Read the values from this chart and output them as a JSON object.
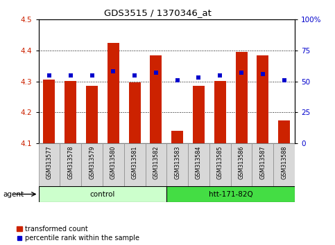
{
  "title": "GDS3515 / 1370346_at",
  "samples": [
    "GSM313577",
    "GSM313578",
    "GSM313579",
    "GSM313580",
    "GSM313581",
    "GSM313582",
    "GSM313583",
    "GSM313584",
    "GSM313585",
    "GSM313586",
    "GSM313587",
    "GSM313588"
  ],
  "bar_values": [
    4.305,
    4.302,
    4.285,
    4.425,
    4.298,
    4.385,
    4.14,
    4.285,
    4.302,
    4.395,
    4.385,
    4.175
  ],
  "blue_values": [
    55,
    55,
    55,
    58,
    55,
    57,
    51,
    53,
    55,
    57,
    56,
    51
  ],
  "bar_color": "#cc2200",
  "blue_color": "#0000cc",
  "ylim_left": [
    4.1,
    4.5
  ],
  "ylim_right": [
    0,
    100
  ],
  "yticks_left": [
    4.1,
    4.2,
    4.3,
    4.4,
    4.5
  ],
  "ytick_labels_right": [
    "0",
    "25",
    "50",
    "75",
    "100%"
  ],
  "group_control_color": "#ccffcc",
  "group_htt_color": "#44dd44",
  "agent_label": "agent",
  "legend_bar_label": "transformed count",
  "legend_dot_label": "percentile rank within the sample",
  "tick_label_color_left": "#cc2200",
  "tick_label_color_right": "#0000cc",
  "bar_bottom": 4.1,
  "bar_width": 0.55
}
